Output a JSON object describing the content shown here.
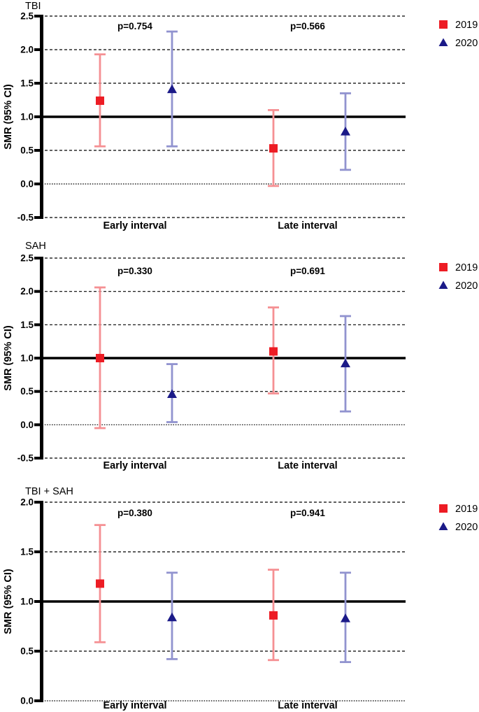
{
  "figure": {
    "description": "Three stacked forest-style SMR plots comparing 2019 vs 2020 at early and late intervals",
    "legend": {
      "position": "top-right",
      "items": [
        {
          "label": "2019",
          "marker": "square",
          "color": "#ed1c24"
        },
        {
          "label": "2020",
          "marker": "triangle",
          "color": "#1b1a88"
        }
      ]
    }
  },
  "chart_data": [
    {
      "type": "errorbar",
      "title": "TBI",
      "ylabel": "SMR (95% CI)",
      "ylim": [
        -0.5,
        2.5
      ],
      "yticks": [
        2.5,
        2.0,
        1.5,
        1.0,
        0.5,
        0.0,
        -0.5
      ],
      "refline": 1.0,
      "grid": "horizontal-dashed",
      "legend_position": "top-right",
      "categories": [
        "Early interval",
        "Late interval"
      ],
      "p_values": [
        "p=0.754",
        "p=0.566"
      ],
      "series": [
        {
          "name": "2019",
          "marker": "square",
          "marker_color": "#ed1c24",
          "ci_color": "#f59093",
          "values": [
            1.24,
            0.53
          ],
          "ci_low": [
            0.56,
            -0.03
          ],
          "ci_high": [
            1.93,
            1.1
          ]
        },
        {
          "name": "2020",
          "marker": "triangle",
          "marker_color": "#1b1a88",
          "ci_color": "#9193cf",
          "values": [
            1.41,
            0.78
          ],
          "ci_low": [
            0.56,
            0.21
          ],
          "ci_high": [
            2.27,
            1.35
          ]
        }
      ]
    },
    {
      "type": "errorbar",
      "title": "SAH",
      "ylabel": "SMR (95% CI)",
      "ylim": [
        -0.5,
        2.5
      ],
      "yticks": [
        2.5,
        2.0,
        1.5,
        1.0,
        0.5,
        0.0,
        -0.5
      ],
      "refline": 1.0,
      "grid": "horizontal-dashed",
      "legend_position": "top-right",
      "categories": [
        "Early interval",
        "Late interval"
      ],
      "p_values": [
        "p=0.330",
        "p=0.691"
      ],
      "series": [
        {
          "name": "2019",
          "marker": "square",
          "marker_color": "#ed1c24",
          "ci_color": "#f59093",
          "values": [
            1.0,
            1.1
          ],
          "ci_low": [
            -0.05,
            0.47
          ],
          "ci_high": [
            2.06,
            1.76
          ]
        },
        {
          "name": "2020",
          "marker": "triangle",
          "marker_color": "#1b1a88",
          "ci_color": "#9193cf",
          "values": [
            0.46,
            0.92
          ],
          "ci_low": [
            0.04,
            0.2
          ],
          "ci_high": [
            0.91,
            1.63
          ]
        }
      ]
    },
    {
      "type": "errorbar",
      "title": "TBI + SAH",
      "ylabel": "SMR (95% CI)",
      "ylim": [
        0.0,
        2.0
      ],
      "yticks": [
        2.0,
        1.5,
        1.0,
        0.5,
        0.0
      ],
      "refline": 1.0,
      "grid": "horizontal-dashed",
      "legend_position": "top-right",
      "categories": [
        "Early interval",
        "Late interval"
      ],
      "p_values": [
        "p=0.380",
        "p=0.941"
      ],
      "series": [
        {
          "name": "2019",
          "marker": "square",
          "marker_color": "#ed1c24",
          "ci_color": "#f59093",
          "values": [
            1.18,
            0.86
          ],
          "ci_low": [
            0.59,
            0.41
          ],
          "ci_high": [
            1.77,
            1.32
          ]
        },
        {
          "name": "2020",
          "marker": "triangle",
          "marker_color": "#1b1a88",
          "ci_color": "#9193cf",
          "values": [
            0.84,
            0.83
          ],
          "ci_low": [
            0.42,
            0.39
          ],
          "ci_high": [
            1.29,
            1.29
          ]
        }
      ]
    }
  ]
}
